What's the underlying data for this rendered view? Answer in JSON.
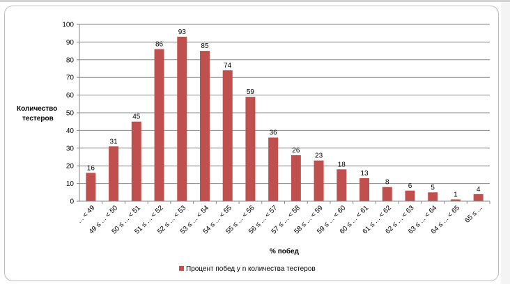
{
  "chart_data": {
    "type": "bar",
    "categories": [
      "... < 49",
      "49 ≤ ... < 50",
      "50 ≤ ... < 51",
      "51 ≤ ... < 52",
      "52 ≤ ... < 53",
      "53 ≤ ... < 54",
      "54 ≤ ... < 55",
      "55 ≤ ... < 56",
      "56 ≤ ... < 57",
      "57 ≤ ... < 58",
      "58 ≤ ... < 59",
      "59 ≤ ... < 60",
      "60 ≤ ... < 61",
      "61 ≤ ... < 62",
      "62 ≤ ... < 63",
      "63 ≤ ... < 64",
      "64 ≤ ... < 65",
      "65 ≤ ..."
    ],
    "values": [
      16,
      31,
      45,
      86,
      93,
      85,
      74,
      59,
      36,
      26,
      23,
      18,
      13,
      8,
      6,
      5,
      1,
      4
    ],
    "series": [
      {
        "name": "Процент побед у n количества тестеров",
        "values": [
          16,
          31,
          45,
          86,
          93,
          85,
          74,
          59,
          36,
          26,
          23,
          18,
          13,
          8,
          6,
          5,
          1,
          4
        ]
      }
    ],
    "xlabel": "% побед",
    "ylabel": [
      "Количество",
      "тестеров"
    ],
    "ylim": [
      0,
      100
    ],
    "yticks": [
      0,
      10,
      20,
      30,
      40,
      50,
      60,
      70,
      80,
      90,
      100
    ],
    "grid": true,
    "legend_position": "bottom",
    "bar_color": "#c0504d"
  }
}
